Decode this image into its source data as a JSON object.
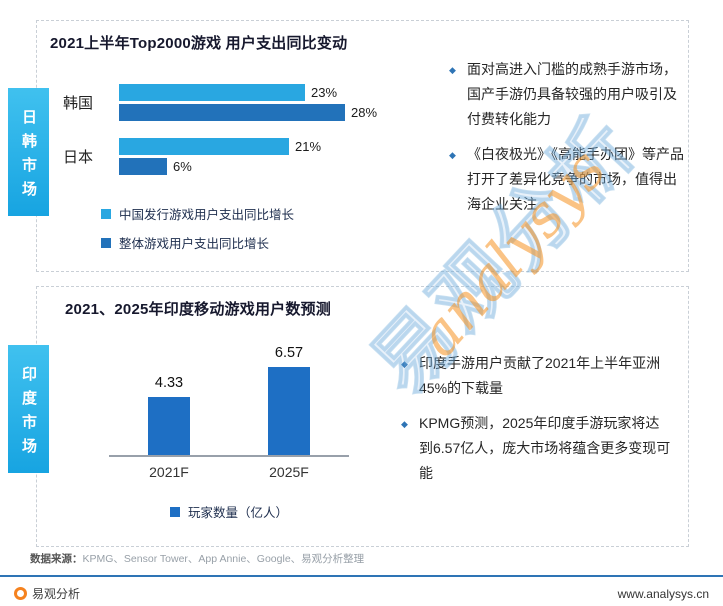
{
  "chart_data": [
    {
      "type": "bar",
      "orientation": "horizontal",
      "title": "2021上半年Top2000游戏 用户支出同比变动",
      "categories": [
        "韩国",
        "日本"
      ],
      "series": [
        {
          "name": "中国发行游戏用户支出同比增长",
          "color": "#29a7e1",
          "values": [
            23,
            21
          ]
        },
        {
          "name": "整体游戏用户支出同比增长",
          "color": "#2272ba",
          "values": [
            28,
            6
          ]
        }
      ],
      "labels": [
        [
          "23%",
          "28%"
        ],
        [
          "21%",
          "6%"
        ]
      ],
      "unit": "%",
      "xlim": [
        0,
        30
      ],
      "grid": false,
      "legend_position": "bottom-left"
    },
    {
      "type": "bar",
      "orientation": "vertical",
      "title": "2021、2025年印度移动游戏用户数预测",
      "categories": [
        "2021F",
        "2025F"
      ],
      "values": [
        4.33,
        6.57
      ],
      "value_labels": [
        "4.33",
        "6.57"
      ],
      "legend": "玩家数量（亿人）",
      "ylabel": "玩家数量（亿人）",
      "color": "#1e6fc4",
      "ylim": [
        0,
        7
      ],
      "grid": false
    }
  ],
  "side_tabs": [
    {
      "label": "日韩市场"
    },
    {
      "label": "印度市场"
    }
  ],
  "panel1": {
    "bullets": [
      "面对高进入门槛的成熟手游市场，国产手游仍具备较强的用户吸引及付费转化能力",
      "《白夜极光》《高能手办团》等产品打开了差异化竞争的市场，值得出海企业关注"
    ]
  },
  "panel2": {
    "bullets": [
      "印度手游用户贡献了2021年上半年亚洲45%的下载量",
      "KPMG预测，2025年印度手游玩家将达到6.57亿人，庞大市场将蕴含更多变现可能"
    ]
  },
  "watermark": {
    "cn": "易观分析",
    "en": "analysys"
  },
  "icons": {
    "diamond": "◆"
  },
  "colors": {
    "accent_blue": "#2e74b5",
    "tab_cyan": "#29b4e8",
    "logo_orange": "#f5821f"
  },
  "footer": {
    "source_label": "数据来源：",
    "source_text": "KPMG、Sensor Tower、App Annie、Google、易观分析整理",
    "brand": "易观分析",
    "website": "www.analysys.cn"
  }
}
